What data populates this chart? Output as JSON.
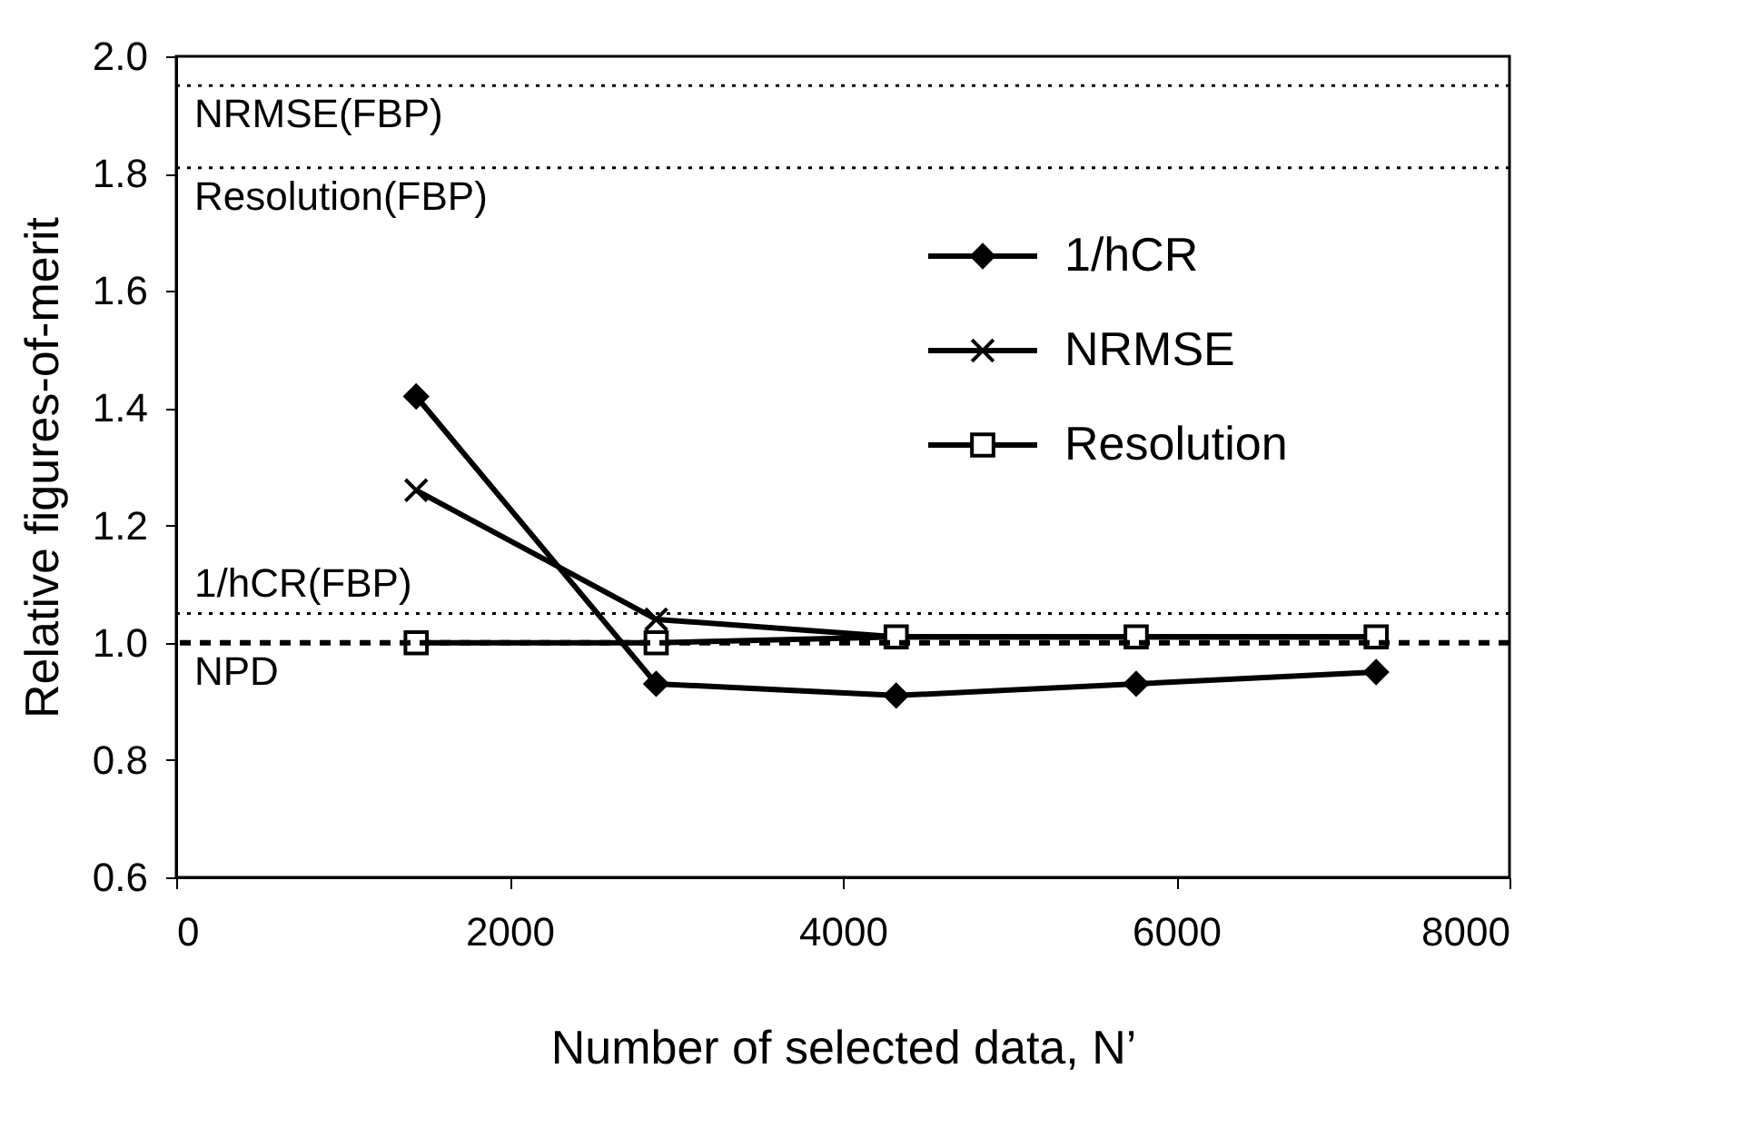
{
  "chart_data": {
    "type": "line",
    "xlabel": "Number of selected data, N’",
    "ylabel": "Relative figures-of-merit",
    "x": [
      1440,
      2880,
      4320,
      5760,
      7200
    ],
    "series": [
      {
        "name": "1/hCR",
        "color": "#000000",
        "marker": "diamond",
        "values": [
          1.42,
          0.93,
          0.91,
          0.93,
          0.95
        ]
      },
      {
        "name": "NRMSE",
        "color": "#000000",
        "marker": "cross",
        "values": [
          1.26,
          1.04,
          1.01,
          1.01,
          1.01
        ]
      },
      {
        "name": "Resolution",
        "color": "#000000",
        "marker": "square",
        "values": [
          1.0,
          1.0,
          1.01,
          1.01,
          1.01
        ]
      }
    ],
    "xlim": [
      0,
      8000
    ],
    "xticks": [
      0,
      2000,
      4000,
      6000,
      8000
    ],
    "ylim": [
      0.6,
      2.0
    ],
    "yticks": [
      0.6,
      0.8,
      {
        "value": 1.0,
        "label": "1.0"
      },
      1.2,
      1.4,
      1.6,
      1.8,
      {
        "value": 2.0,
        "label": "2.0"
      }
    ],
    "ref_lines": [
      {
        "axis": "y",
        "value": 1.95,
        "label": "NRMSE(FBP)",
        "line_style": "dotted",
        "color": "#000000"
      },
      {
        "axis": "y",
        "value": 1.81,
        "label": "Resolution(FBP)",
        "line_style": "dotted",
        "color": "#000000"
      },
      {
        "axis": "y",
        "value": 1.05,
        "label": "1/hCR(FBP)",
        "line_style": "dotted",
        "color": "#000000"
      },
      {
        "axis": "y",
        "value": 1.0,
        "label": "NPD",
        "line_style": "dashed",
        "color": "#000000"
      }
    ],
    "grid": false,
    "legend": "top right",
    "line_style": "solid"
  }
}
